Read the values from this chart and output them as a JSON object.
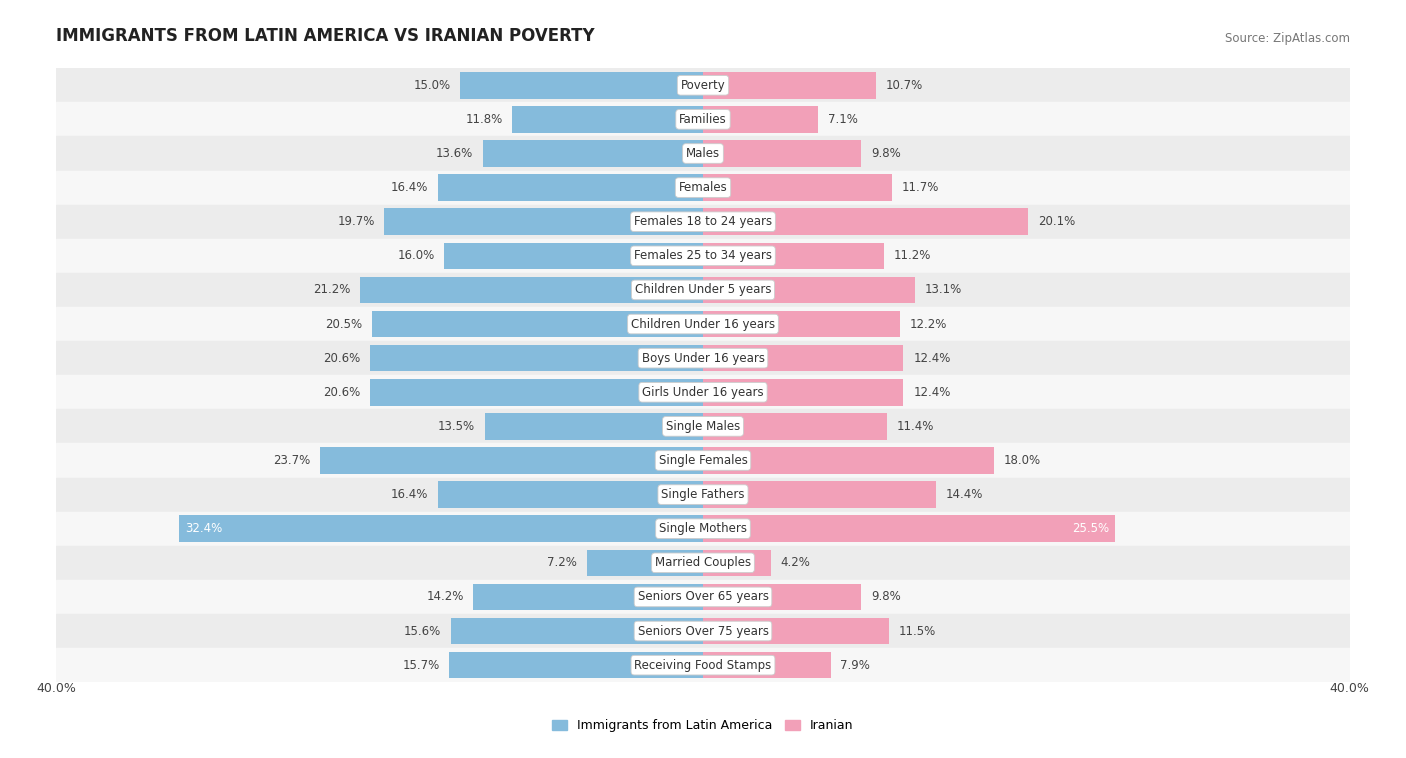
{
  "title": "IMMIGRANTS FROM LATIN AMERICA VS IRANIAN POVERTY",
  "source": "Source: ZipAtlas.com",
  "categories": [
    "Poverty",
    "Families",
    "Males",
    "Females",
    "Females 18 to 24 years",
    "Females 25 to 34 years",
    "Children Under 5 years",
    "Children Under 16 years",
    "Boys Under 16 years",
    "Girls Under 16 years",
    "Single Males",
    "Single Females",
    "Single Fathers",
    "Single Mothers",
    "Married Couples",
    "Seniors Over 65 years",
    "Seniors Over 75 years",
    "Receiving Food Stamps"
  ],
  "latin_america": [
    15.0,
    11.8,
    13.6,
    16.4,
    19.7,
    16.0,
    21.2,
    20.5,
    20.6,
    20.6,
    13.5,
    23.7,
    16.4,
    32.4,
    7.2,
    14.2,
    15.6,
    15.7
  ],
  "iranian": [
    10.7,
    7.1,
    9.8,
    11.7,
    20.1,
    11.2,
    13.1,
    12.2,
    12.4,
    12.4,
    11.4,
    18.0,
    14.4,
    25.5,
    4.2,
    9.8,
    11.5,
    7.9
  ],
  "latin_color": "#85BBDC",
  "iranian_color": "#F2A0B8",
  "highlight_rows": [
    13
  ],
  "axis_limit": 40.0,
  "legend_label_latin": "Immigrants from Latin America",
  "legend_label_iranian": "Iranian",
  "row_colors": [
    "#ececec",
    "#f7f7f7"
  ]
}
